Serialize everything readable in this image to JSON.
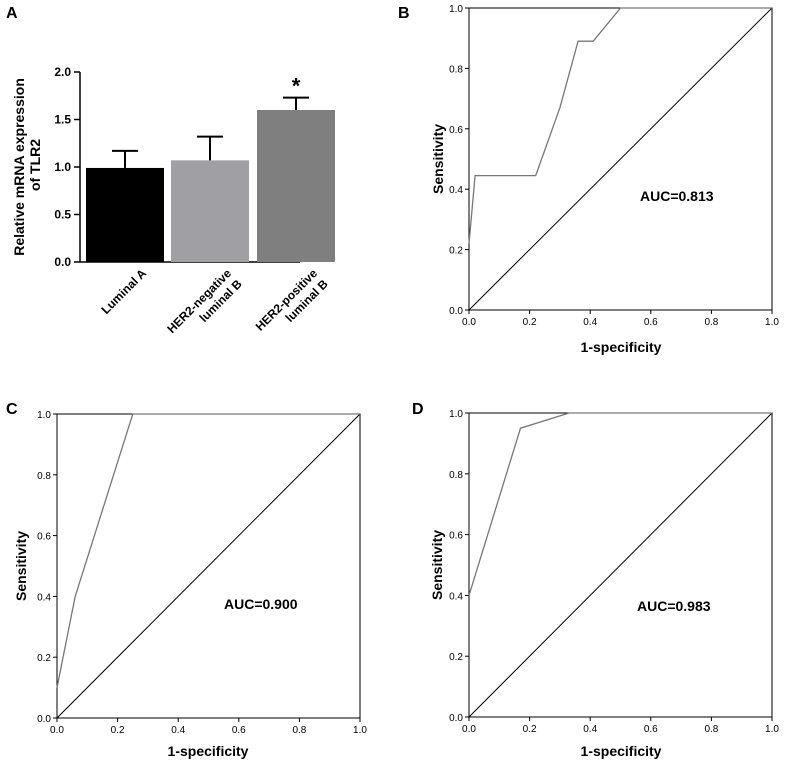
{
  "chart_data": [
    {
      "panel": "A",
      "type": "bar",
      "ylabel_lines": [
        "Relative mRNA expression",
        "of TLR2"
      ],
      "ylim": [
        0,
        2.0
      ],
      "yticks": [
        "0.0",
        "0.5",
        "1.0",
        "1.5",
        "2.0"
      ],
      "categories": [
        {
          "lines": [
            "Luminal A"
          ]
        },
        {
          "lines": [
            "HER2-negative",
            "luminal B"
          ]
        },
        {
          "lines": [
            "HER2-positive",
            "luminal B"
          ]
        }
      ],
      "values": [
        0.99,
        1.07,
        1.6
      ],
      "errors": [
        0.18,
        0.25,
        0.13
      ],
      "bar_colors": [
        "#000000",
        "#a0a0a4",
        "#7f7f7f"
      ],
      "annotations": [
        "",
        "",
        "*"
      ]
    },
    {
      "panel": "B",
      "type": "line",
      "xlabel": "1-specificity",
      "ylabel": "Sensitivity",
      "xlim": [
        0,
        1
      ],
      "ylim": [
        0,
        1
      ],
      "ticks": [
        "0.0",
        "0.2",
        "0.4",
        "0.6",
        "0.8",
        "1.0"
      ],
      "auc_label": "AUC=0.813",
      "roc": [
        [
          0,
          0.22
        ],
        [
          0.02,
          0.445
        ],
        [
          0.22,
          0.445
        ],
        [
          0.3,
          0.67
        ],
        [
          0.36,
          0.89
        ],
        [
          0.41,
          0.89
        ],
        [
          0.5,
          1.0
        ],
        [
          1.0,
          1.0
        ]
      ],
      "diagonal": [
        [
          0,
          0
        ],
        [
          1,
          1
        ]
      ]
    },
    {
      "panel": "C",
      "type": "line",
      "xlabel": "1-specificity",
      "ylabel": "Sensitivity",
      "xlim": [
        0,
        1
      ],
      "ylim": [
        0,
        1
      ],
      "ticks": [
        "0.0",
        "0.2",
        "0.4",
        "0.6",
        "0.8",
        "1.0"
      ],
      "auc_label": "AUC=0.900",
      "roc": [
        [
          0,
          0.1
        ],
        [
          0.06,
          0.4
        ],
        [
          0.25,
          1.0
        ],
        [
          1.0,
          1.0
        ]
      ],
      "diagonal": [
        [
          0,
          0
        ],
        [
          1,
          1
        ]
      ]
    },
    {
      "panel": "D",
      "type": "line",
      "xlabel": "1-specificity",
      "ylabel": "Sensitivity",
      "xlim": [
        0,
        1
      ],
      "ylim": [
        0,
        1
      ],
      "ticks": [
        "0.0",
        "0.2",
        "0.4",
        "0.6",
        "0.8",
        "1.0"
      ],
      "auc_label": "AUC=0.983",
      "roc": [
        [
          0,
          0.4
        ],
        [
          0.17,
          0.95
        ],
        [
          0.33,
          1.0
        ],
        [
          1.0,
          1.0
        ]
      ],
      "diagonal": [
        [
          0,
          0
        ],
        [
          1,
          1
        ]
      ]
    }
  ]
}
